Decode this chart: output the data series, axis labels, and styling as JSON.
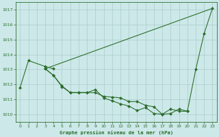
{
  "title": "Graphe pression niveau de la mer (hPa)",
  "bg_color": "#cce8e8",
  "grid_color": "#aacccc",
  "line_color": "#2d6e2d",
  "xlim": [
    -0.5,
    23.5
  ],
  "ylim": [
    1009.5,
    1017.5
  ],
  "yticks": [
    1010,
    1011,
    1012,
    1013,
    1014,
    1015,
    1016,
    1017
  ],
  "xticks": [
    0,
    1,
    2,
    3,
    4,
    5,
    6,
    7,
    8,
    9,
    10,
    11,
    12,
    13,
    14,
    15,
    16,
    17,
    18,
    19,
    20,
    21,
    22,
    23
  ],
  "line1_x": [
    0,
    1,
    3,
    4
  ],
  "line1_y": [
    1011.8,
    1013.6,
    1013.2,
    1013.05
  ],
  "line2_x": [
    3,
    23
  ],
  "line2_y": [
    1013.05,
    1017.1
  ],
  "line3_x": [
    3,
    4,
    5,
    6,
    7,
    8,
    9,
    10,
    11,
    12,
    13,
    14,
    15,
    16,
    17,
    18,
    19,
    20
  ],
  "line3_y": [
    1013.05,
    1012.6,
    1011.9,
    1011.45,
    1011.45,
    1011.45,
    1011.45,
    1011.2,
    1011.15,
    1011.1,
    1010.85,
    1010.85,
    1010.6,
    1010.5,
    1010.0,
    1010.35,
    1010.2,
    1010.2
  ],
  "line4_x": [
    3,
    4,
    5,
    6,
    7,
    8,
    9,
    10,
    11,
    12,
    13,
    14,
    15,
    16,
    17,
    18,
    19,
    20,
    21,
    22,
    23
  ],
  "line4_y": [
    1013.05,
    1012.6,
    1011.85,
    1011.45,
    1011.45,
    1011.45,
    1011.65,
    1011.1,
    1010.9,
    1010.7,
    1010.55,
    1010.25,
    1010.45,
    1010.05,
    1010.0,
    1010.05,
    1010.35,
    1010.2,
    1013.0,
    1015.4,
    1017.1
  ]
}
